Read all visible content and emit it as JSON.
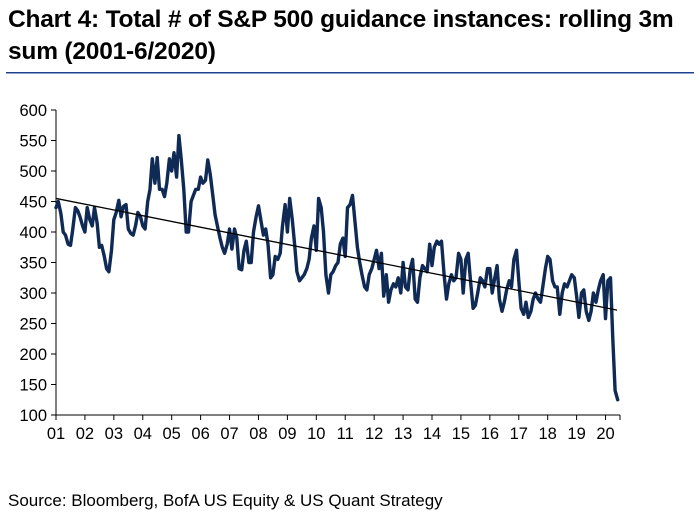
{
  "colors": {
    "series": "#0f2a55",
    "trend": "#000000",
    "rule": "#1f3f8f",
    "axis": "#000000"
  },
  "chart_data": {
    "type": "line",
    "title": "Chart 4: Total # of S&P 500 guidance instances: rolling 3m sum (2001-6/2020)",
    "source": "Source: Bloomberg, BofA US Equity & US Quant Strategy",
    "xlabel": "",
    "ylabel": "",
    "x_tick_labels": [
      "01",
      "02",
      "03",
      "04",
      "05",
      "06",
      "07",
      "08",
      "09",
      "10",
      "11",
      "12",
      "13",
      "14",
      "15",
      "16",
      "17",
      "18",
      "19",
      "20"
    ],
    "y_ticks": [
      100,
      150,
      200,
      250,
      300,
      350,
      400,
      450,
      500,
      550,
      600
    ],
    "ylim": [
      100,
      600
    ],
    "xlim": [
      2001,
      2020.5
    ],
    "grid": false,
    "series": [
      {
        "name": "Total # of S&P 500 guidance instances (rolling 3m sum)",
        "values": [
          [
            2001.0,
            440
          ],
          [
            2001.08,
            450
          ],
          [
            2001.17,
            430
          ],
          [
            2001.25,
            400
          ],
          [
            2001.33,
            395
          ],
          [
            2001.42,
            380
          ],
          [
            2001.5,
            378
          ],
          [
            2001.58,
            405
          ],
          [
            2001.67,
            440
          ],
          [
            2001.75,
            435
          ],
          [
            2001.83,
            425
          ],
          [
            2001.92,
            410
          ],
          [
            2002.0,
            400
          ],
          [
            2002.08,
            440
          ],
          [
            2002.17,
            420
          ],
          [
            2002.25,
            410
          ],
          [
            2002.33,
            440
          ],
          [
            2002.42,
            415
          ],
          [
            2002.5,
            375
          ],
          [
            2002.58,
            378
          ],
          [
            2002.67,
            360
          ],
          [
            2002.75,
            340
          ],
          [
            2002.83,
            335
          ],
          [
            2002.92,
            370
          ],
          [
            2003.0,
            420
          ],
          [
            2003.08,
            432
          ],
          [
            2003.17,
            452
          ],
          [
            2003.25,
            425
          ],
          [
            2003.33,
            442
          ],
          [
            2003.42,
            445
          ],
          [
            2003.5,
            405
          ],
          [
            2003.58,
            398
          ],
          [
            2003.67,
            395
          ],
          [
            2003.75,
            410
          ],
          [
            2003.83,
            432
          ],
          [
            2003.92,
            425
          ],
          [
            2004.0,
            410
          ],
          [
            2004.08,
            405
          ],
          [
            2004.17,
            450
          ],
          [
            2004.25,
            470
          ],
          [
            2004.33,
            520
          ],
          [
            2004.42,
            480
          ],
          [
            2004.5,
            522
          ],
          [
            2004.58,
            470
          ],
          [
            2004.67,
            470
          ],
          [
            2004.75,
            458
          ],
          [
            2004.83,
            480
          ],
          [
            2004.92,
            520
          ],
          [
            2005.0,
            500
          ],
          [
            2005.08,
            530
          ],
          [
            2005.17,
            490
          ],
          [
            2005.25,
            558
          ],
          [
            2005.33,
            520
          ],
          [
            2005.42,
            470
          ],
          [
            2005.5,
            400
          ],
          [
            2005.58,
            400
          ],
          [
            2005.67,
            450
          ],
          [
            2005.75,
            460
          ],
          [
            2005.83,
            470
          ],
          [
            2005.92,
            470
          ],
          [
            2006.0,
            490
          ],
          [
            2006.08,
            480
          ],
          [
            2006.17,
            485
          ],
          [
            2006.25,
            518
          ],
          [
            2006.33,
            495
          ],
          [
            2006.42,
            460
          ],
          [
            2006.5,
            428
          ],
          [
            2006.58,
            410
          ],
          [
            2006.67,
            390
          ],
          [
            2006.75,
            375
          ],
          [
            2006.83,
            365
          ],
          [
            2006.92,
            380
          ],
          [
            2007.0,
            405
          ],
          [
            2007.08,
            372
          ],
          [
            2007.17,
            405
          ],
          [
            2007.25,
            390
          ],
          [
            2007.33,
            340
          ],
          [
            2007.42,
            338
          ],
          [
            2007.5,
            370
          ],
          [
            2007.58,
            385
          ],
          [
            2007.67,
            350
          ],
          [
            2007.75,
            350
          ],
          [
            2007.83,
            400
          ],
          [
            2007.92,
            425
          ],
          [
            2008.0,
            443
          ],
          [
            2008.08,
            420
          ],
          [
            2008.17,
            395
          ],
          [
            2008.25,
            405
          ],
          [
            2008.33,
            380
          ],
          [
            2008.42,
            325
          ],
          [
            2008.5,
            330
          ],
          [
            2008.58,
            360
          ],
          [
            2008.67,
            355
          ],
          [
            2008.75,
            365
          ],
          [
            2008.83,
            410
          ],
          [
            2008.92,
            445
          ],
          [
            2009.0,
            400
          ],
          [
            2009.08,
            455
          ],
          [
            2009.17,
            420
          ],
          [
            2009.25,
            380
          ],
          [
            2009.33,
            335
          ],
          [
            2009.42,
            320
          ],
          [
            2009.5,
            325
          ],
          [
            2009.58,
            330
          ],
          [
            2009.67,
            340
          ],
          [
            2009.75,
            355
          ],
          [
            2009.83,
            390
          ],
          [
            2009.92,
            410
          ],
          [
            2010.0,
            370
          ],
          [
            2010.08,
            455
          ],
          [
            2010.17,
            440
          ],
          [
            2010.25,
            400
          ],
          [
            2010.33,
            330
          ],
          [
            2010.42,
            300
          ],
          [
            2010.5,
            330
          ],
          [
            2010.58,
            335
          ],
          [
            2010.67,
            345
          ],
          [
            2010.75,
            350
          ],
          [
            2010.83,
            380
          ],
          [
            2010.92,
            390
          ],
          [
            2011.0,
            360
          ],
          [
            2011.08,
            440
          ],
          [
            2011.17,
            445
          ],
          [
            2011.25,
            460
          ],
          [
            2011.33,
            420
          ],
          [
            2011.42,
            375
          ],
          [
            2011.5,
            350
          ],
          [
            2011.58,
            330
          ],
          [
            2011.67,
            310
          ],
          [
            2011.75,
            305
          ],
          [
            2011.83,
            330
          ],
          [
            2011.92,
            340
          ],
          [
            2012.0,
            355
          ],
          [
            2012.08,
            370
          ],
          [
            2012.17,
            340
          ],
          [
            2012.25,
            365
          ],
          [
            2012.33,
            295
          ],
          [
            2012.42,
            330
          ],
          [
            2012.5,
            285
          ],
          [
            2012.58,
            305
          ],
          [
            2012.67,
            315
          ],
          [
            2012.75,
            310
          ],
          [
            2012.83,
            325
          ],
          [
            2012.92,
            300
          ],
          [
            2013.0,
            350
          ],
          [
            2013.08,
            310
          ],
          [
            2013.17,
            305
          ],
          [
            2013.25,
            340
          ],
          [
            2013.33,
            355
          ],
          [
            2013.42,
            290
          ],
          [
            2013.5,
            285
          ],
          [
            2013.58,
            325
          ],
          [
            2013.67,
            345
          ],
          [
            2013.75,
            340
          ],
          [
            2013.83,
            335
          ],
          [
            2013.92,
            380
          ],
          [
            2014.0,
            345
          ],
          [
            2014.08,
            375
          ],
          [
            2014.17,
            385
          ],
          [
            2014.25,
            380
          ],
          [
            2014.33,
            385
          ],
          [
            2014.42,
            330
          ],
          [
            2014.5,
            290
          ],
          [
            2014.58,
            315
          ],
          [
            2014.67,
            330
          ],
          [
            2014.75,
            320
          ],
          [
            2014.83,
            325
          ],
          [
            2014.92,
            365
          ],
          [
            2015.0,
            355
          ],
          [
            2015.08,
            300
          ],
          [
            2015.17,
            355
          ],
          [
            2015.25,
            365
          ],
          [
            2015.33,
            320
          ],
          [
            2015.42,
            275
          ],
          [
            2015.5,
            280
          ],
          [
            2015.58,
            300
          ],
          [
            2015.67,
            325
          ],
          [
            2015.75,
            320
          ],
          [
            2015.83,
            310
          ],
          [
            2015.92,
            340
          ],
          [
            2016.0,
            340
          ],
          [
            2016.08,
            300
          ],
          [
            2016.17,
            325
          ],
          [
            2016.25,
            345
          ],
          [
            2016.33,
            290
          ],
          [
            2016.42,
            270
          ],
          [
            2016.5,
            285
          ],
          [
            2016.58,
            305
          ],
          [
            2016.67,
            320
          ],
          [
            2016.75,
            310
          ],
          [
            2016.83,
            355
          ],
          [
            2016.92,
            370
          ],
          [
            2017.0,
            320
          ],
          [
            2017.08,
            275
          ],
          [
            2017.17,
            265
          ],
          [
            2017.25,
            285
          ],
          [
            2017.33,
            260
          ],
          [
            2017.42,
            270
          ],
          [
            2017.5,
            290
          ],
          [
            2017.58,
            300
          ],
          [
            2017.67,
            290
          ],
          [
            2017.75,
            285
          ],
          [
            2017.83,
            310
          ],
          [
            2017.92,
            340
          ],
          [
            2018.0,
            360
          ],
          [
            2018.08,
            355
          ],
          [
            2018.17,
            320
          ],
          [
            2018.25,
            310
          ],
          [
            2018.33,
            310
          ],
          [
            2018.42,
            265
          ],
          [
            2018.5,
            300
          ],
          [
            2018.58,
            315
          ],
          [
            2018.67,
            310
          ],
          [
            2018.75,
            320
          ],
          [
            2018.83,
            330
          ],
          [
            2018.92,
            325
          ],
          [
            2019.0,
            295
          ],
          [
            2019.08,
            260
          ],
          [
            2019.17,
            300
          ],
          [
            2019.25,
            305
          ],
          [
            2019.33,
            270
          ],
          [
            2019.42,
            255
          ],
          [
            2019.5,
            270
          ],
          [
            2019.58,
            300
          ],
          [
            2019.67,
            285
          ],
          [
            2019.75,
            305
          ],
          [
            2019.83,
            320
          ],
          [
            2019.92,
            330
          ],
          [
            2020.0,
            258
          ],
          [
            2020.08,
            320
          ],
          [
            2020.17,
            325
          ],
          [
            2020.25,
            225
          ],
          [
            2020.33,
            140
          ],
          [
            2020.42,
            125
          ]
        ]
      }
    ],
    "trendline": {
      "name": "Linear trend",
      "points": [
        [
          2001.0,
          455
        ],
        [
          2020.4,
          272
        ]
      ]
    }
  }
}
